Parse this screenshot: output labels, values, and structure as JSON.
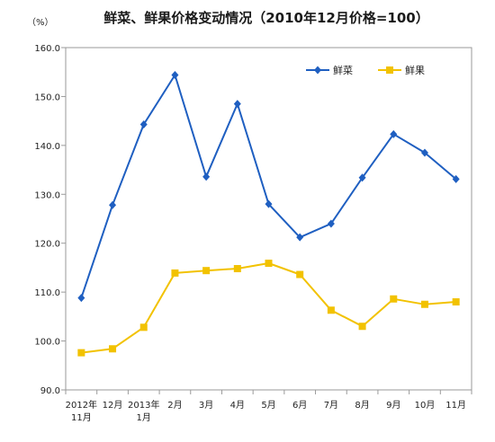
{
  "chart_data": {
    "type": "line",
    "title": "鲜菜、鲜果价格变动情况（2010年12月价格=100）",
    "unit": "（%）",
    "ylim": [
      90,
      160
    ],
    "yticks": [
      "160.0",
      "150.0",
      "140.0",
      "130.0",
      "120.0",
      "110.0",
      "100.0",
      "90.0"
    ],
    "ytick_values": [
      160,
      150,
      140,
      130,
      120,
      110,
      100,
      90
    ],
    "categories": [
      [
        "2012年",
        "11月"
      ],
      [
        "12月"
      ],
      [
        "2013年",
        "1月"
      ],
      [
        "2月"
      ],
      [
        "3月"
      ],
      [
        "4月"
      ],
      [
        "5月"
      ],
      [
        "6月"
      ],
      [
        "7月"
      ],
      [
        "8月"
      ],
      [
        "9月"
      ],
      [
        "10月"
      ],
      [
        "11月"
      ]
    ],
    "series": [
      {
        "name": "鲜菜",
        "color": "#1f5fc1",
        "marker": "diamond",
        "values": [
          108.8,
          127.8,
          144.3,
          154.4,
          133.6,
          148.5,
          128.0,
          121.2,
          124.0,
          133.4,
          142.3,
          138.5,
          133.1
        ]
      },
      {
        "name": "鲜果",
        "color": "#f2c200",
        "marker": "square",
        "values": [
          97.6,
          98.4,
          102.8,
          113.9,
          114.4,
          114.8,
          115.9,
          113.6,
          106.3,
          103.0,
          108.6,
          107.5,
          108.0
        ]
      }
    ],
    "legend_position": "top-right",
    "grid": false
  }
}
